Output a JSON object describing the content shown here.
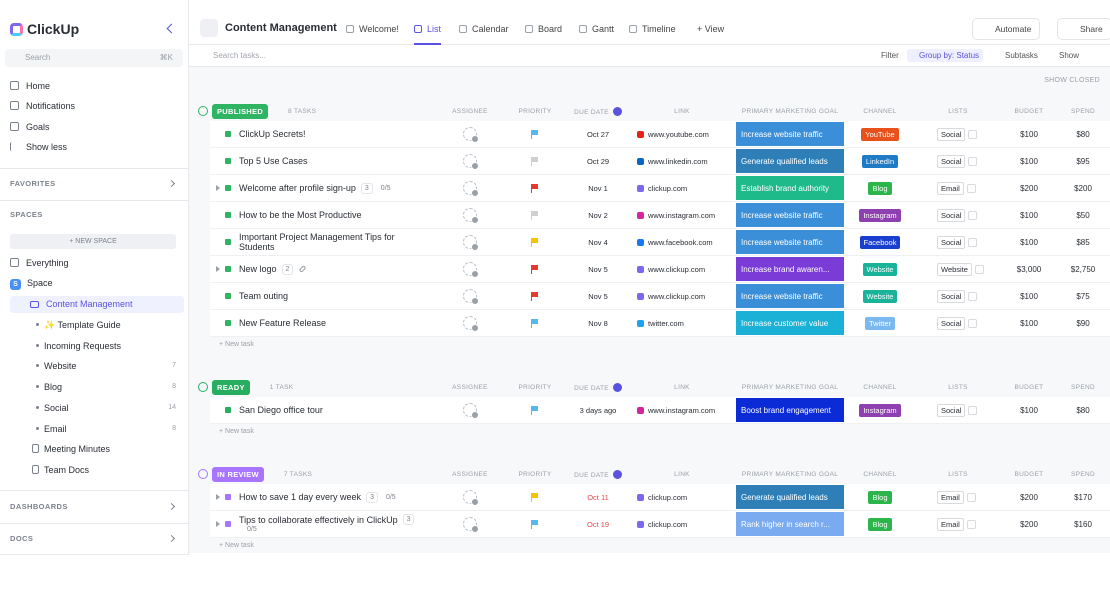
{
  "sidebar": {
    "logo": "ClickUp",
    "search": "Search",
    "shortcut": "⌘K",
    "nav": [
      "Home",
      "Notifications",
      "Goals",
      "Show less"
    ],
    "favorites": "FAVORITES",
    "spaces": "SPACES",
    "new_space": "+ NEW SPACE",
    "everything": "Everything",
    "space_badge": "S",
    "space": "Space",
    "folder": "Content Management",
    "lists": [
      {
        "name": "✨ Template Guide"
      },
      {
        "name": "Incoming Requests"
      },
      {
        "name": "Website",
        "count": "7"
      },
      {
        "name": "Blog",
        "count": "8"
      },
      {
        "name": "Social",
        "count": "14"
      },
      {
        "name": "Email",
        "count": "8"
      }
    ],
    "docs_items": [
      "Meeting Minutes",
      "Team Docs"
    ],
    "dashboards": "DASHBOARDS",
    "docs": "DOCS"
  },
  "header": {
    "title": "Content Management",
    "tabs": [
      {
        "label": "Welcome!"
      },
      {
        "label": "List",
        "active": true
      },
      {
        "label": "Calendar"
      },
      {
        "label": "Board"
      },
      {
        "label": "Gantt"
      },
      {
        "label": "Timeline"
      },
      {
        "label": "+ View"
      }
    ],
    "automate": "Automate",
    "share": "Share"
  },
  "toolbar": {
    "search": "Search tasks...",
    "filter": "Filter",
    "group_by": "Group by: Status",
    "subtasks": "Subtasks",
    "show": "Show",
    "show_closed": "SHOW CLOSED"
  },
  "columns": [
    "ASSIGNEE",
    "PRIORITY",
    "DUE DATE",
    "LINK",
    "PRIMARY MARKETING GOAL",
    "CHANNEL",
    "LISTS",
    "BUDGET",
    "SPEND"
  ],
  "new_task": "+ New task",
  "groups": [
    {
      "status": "PUBLISHED",
      "color": "#2fb463",
      "count": "8 TASKS",
      "tasks": [
        {
          "name": "ClickUp Secrets!",
          "priority": "#55b8ee",
          "due": "Oct 27",
          "link": "www.youtube.com",
          "link_icon": "#e62117",
          "goal": "Increase website traffic",
          "goal_color": "#3b8fd9",
          "channel": "YouTube",
          "channel_color": "#e8501c",
          "list": "Social",
          "budget": "$100",
          "spend": "$80"
        },
        {
          "name": "Top 5 Use Cases",
          "priority": "#cfcfcf",
          "due": "Oct 29",
          "link": "www.linkedin.com",
          "link_icon": "#0a66c2",
          "goal": "Generate qualified leads",
          "goal_color": "#2e7fb8",
          "channel": "LinkedIn",
          "channel_color": "#1f7bc6",
          "list": "Social",
          "budget": "$100",
          "spend": "$95"
        },
        {
          "name": "Welcome after profile sign-up",
          "subtasks": "3",
          "checklist": "0/5",
          "priority": "#e8392d",
          "due": "Nov 1",
          "link": "clickup.com",
          "link_icon": "#7b68ee",
          "goal": "Establish brand authority",
          "goal_color": "#1fba8a",
          "channel": "Blog",
          "channel_color": "#2bb54a",
          "list": "Email",
          "budget": "$200",
          "spend": "$200"
        },
        {
          "name": "How to be the Most Productive",
          "priority": "#cfcfcf",
          "due": "Nov 2",
          "link": "www.instagram.com",
          "link_icon": "#d6249f",
          "goal": "Increase website traffic",
          "goal_color": "#3b8fd9",
          "channel": "Instagram",
          "channel_color": "#8e3fb0",
          "list": "Social",
          "budget": "$100",
          "spend": "$50"
        },
        {
          "name": "Important Project Management Tips for Students",
          "priority": "#f5c400",
          "due": "Nov 4",
          "link": "www.facebook.com",
          "link_icon": "#1877f2",
          "goal": "Increase website traffic",
          "goal_color": "#3b8fd9",
          "channel": "Facebook",
          "channel_color": "#1a3fcf",
          "list": "Social",
          "budget": "$100",
          "spend": "$85"
        },
        {
          "name": "New logo",
          "subtasks": "2",
          "attachment": true,
          "priority": "#e8392d",
          "due": "Nov 5",
          "link": "www.clickup.com",
          "link_icon": "#7b68ee",
          "goal": "Increase brand awaren...",
          "goal_color": "#7a3bd6",
          "channel": "Website",
          "channel_color": "#19b39a",
          "list": "Website",
          "budget": "$3,000",
          "spend": "$2,750"
        },
        {
          "name": "Team outing",
          "priority": "#e8392d",
          "due": "Nov 5",
          "link": "www.clickup.com",
          "link_icon": "#7b68ee",
          "goal": "Increase website traffic",
          "goal_color": "#3b8fd9",
          "channel": "Website",
          "channel_color": "#19b39a",
          "list": "Social",
          "budget": "$100",
          "spend": "$75"
        },
        {
          "name": "New Feature Release",
          "priority": "#55b8ee",
          "due": "Nov 8",
          "link": "twitter.com",
          "link_icon": "#1da1f2",
          "goal": "Increase customer value",
          "goal_color": "#1bb0d6",
          "channel": "Twitter",
          "channel_color": "#7ab8f0",
          "list": "Social",
          "budget": "$100",
          "spend": "$90"
        }
      ]
    },
    {
      "status": "READY",
      "color": "#27ae60",
      "count": "1 TASK",
      "tasks": [
        {
          "name": "San Diego office tour",
          "priority": "#55b8ee",
          "due": "3 days ago",
          "link": "www.instagram.com",
          "link_icon": "#d6249f",
          "goal": "Boost brand engagement",
          "goal_color": "#0b2bd6",
          "channel": "Instagram",
          "channel_color": "#8e3fb0",
          "list": "Social",
          "budget": "$100",
          "spend": "$80"
        }
      ]
    },
    {
      "status": "IN REVIEW",
      "color": "#a875ff",
      "count": "7 TASKS",
      "tasks": [
        {
          "name": "How to save 1 day every week",
          "subtasks": "3",
          "checklist": "0/5",
          "priority": "#f5c400",
          "due": "Oct 11",
          "overdue": true,
          "link": "clickup.com",
          "link_icon": "#7b68ee",
          "goal": "Generate qualified leads",
          "goal_color": "#2e7fb8",
          "channel": "Blog",
          "channel_color": "#2bb54a",
          "list": "Email",
          "budget": "$200",
          "spend": "$170"
        },
        {
          "name": "Tips to collaborate effectively in ClickUp",
          "subtasks": "3",
          "checklist": "0/5",
          "priority": "#55b8ee",
          "due": "Oct 19",
          "overdue": true,
          "link": "clickup.com",
          "link_icon": "#7b68ee",
          "goal": "Rank higher in search r...",
          "goal_color": "#7aaaf0",
          "channel": "Blog",
          "channel_color": "#2bb54a",
          "list": "Email",
          "budget": "$200",
          "spend": "$160"
        }
      ]
    }
  ]
}
